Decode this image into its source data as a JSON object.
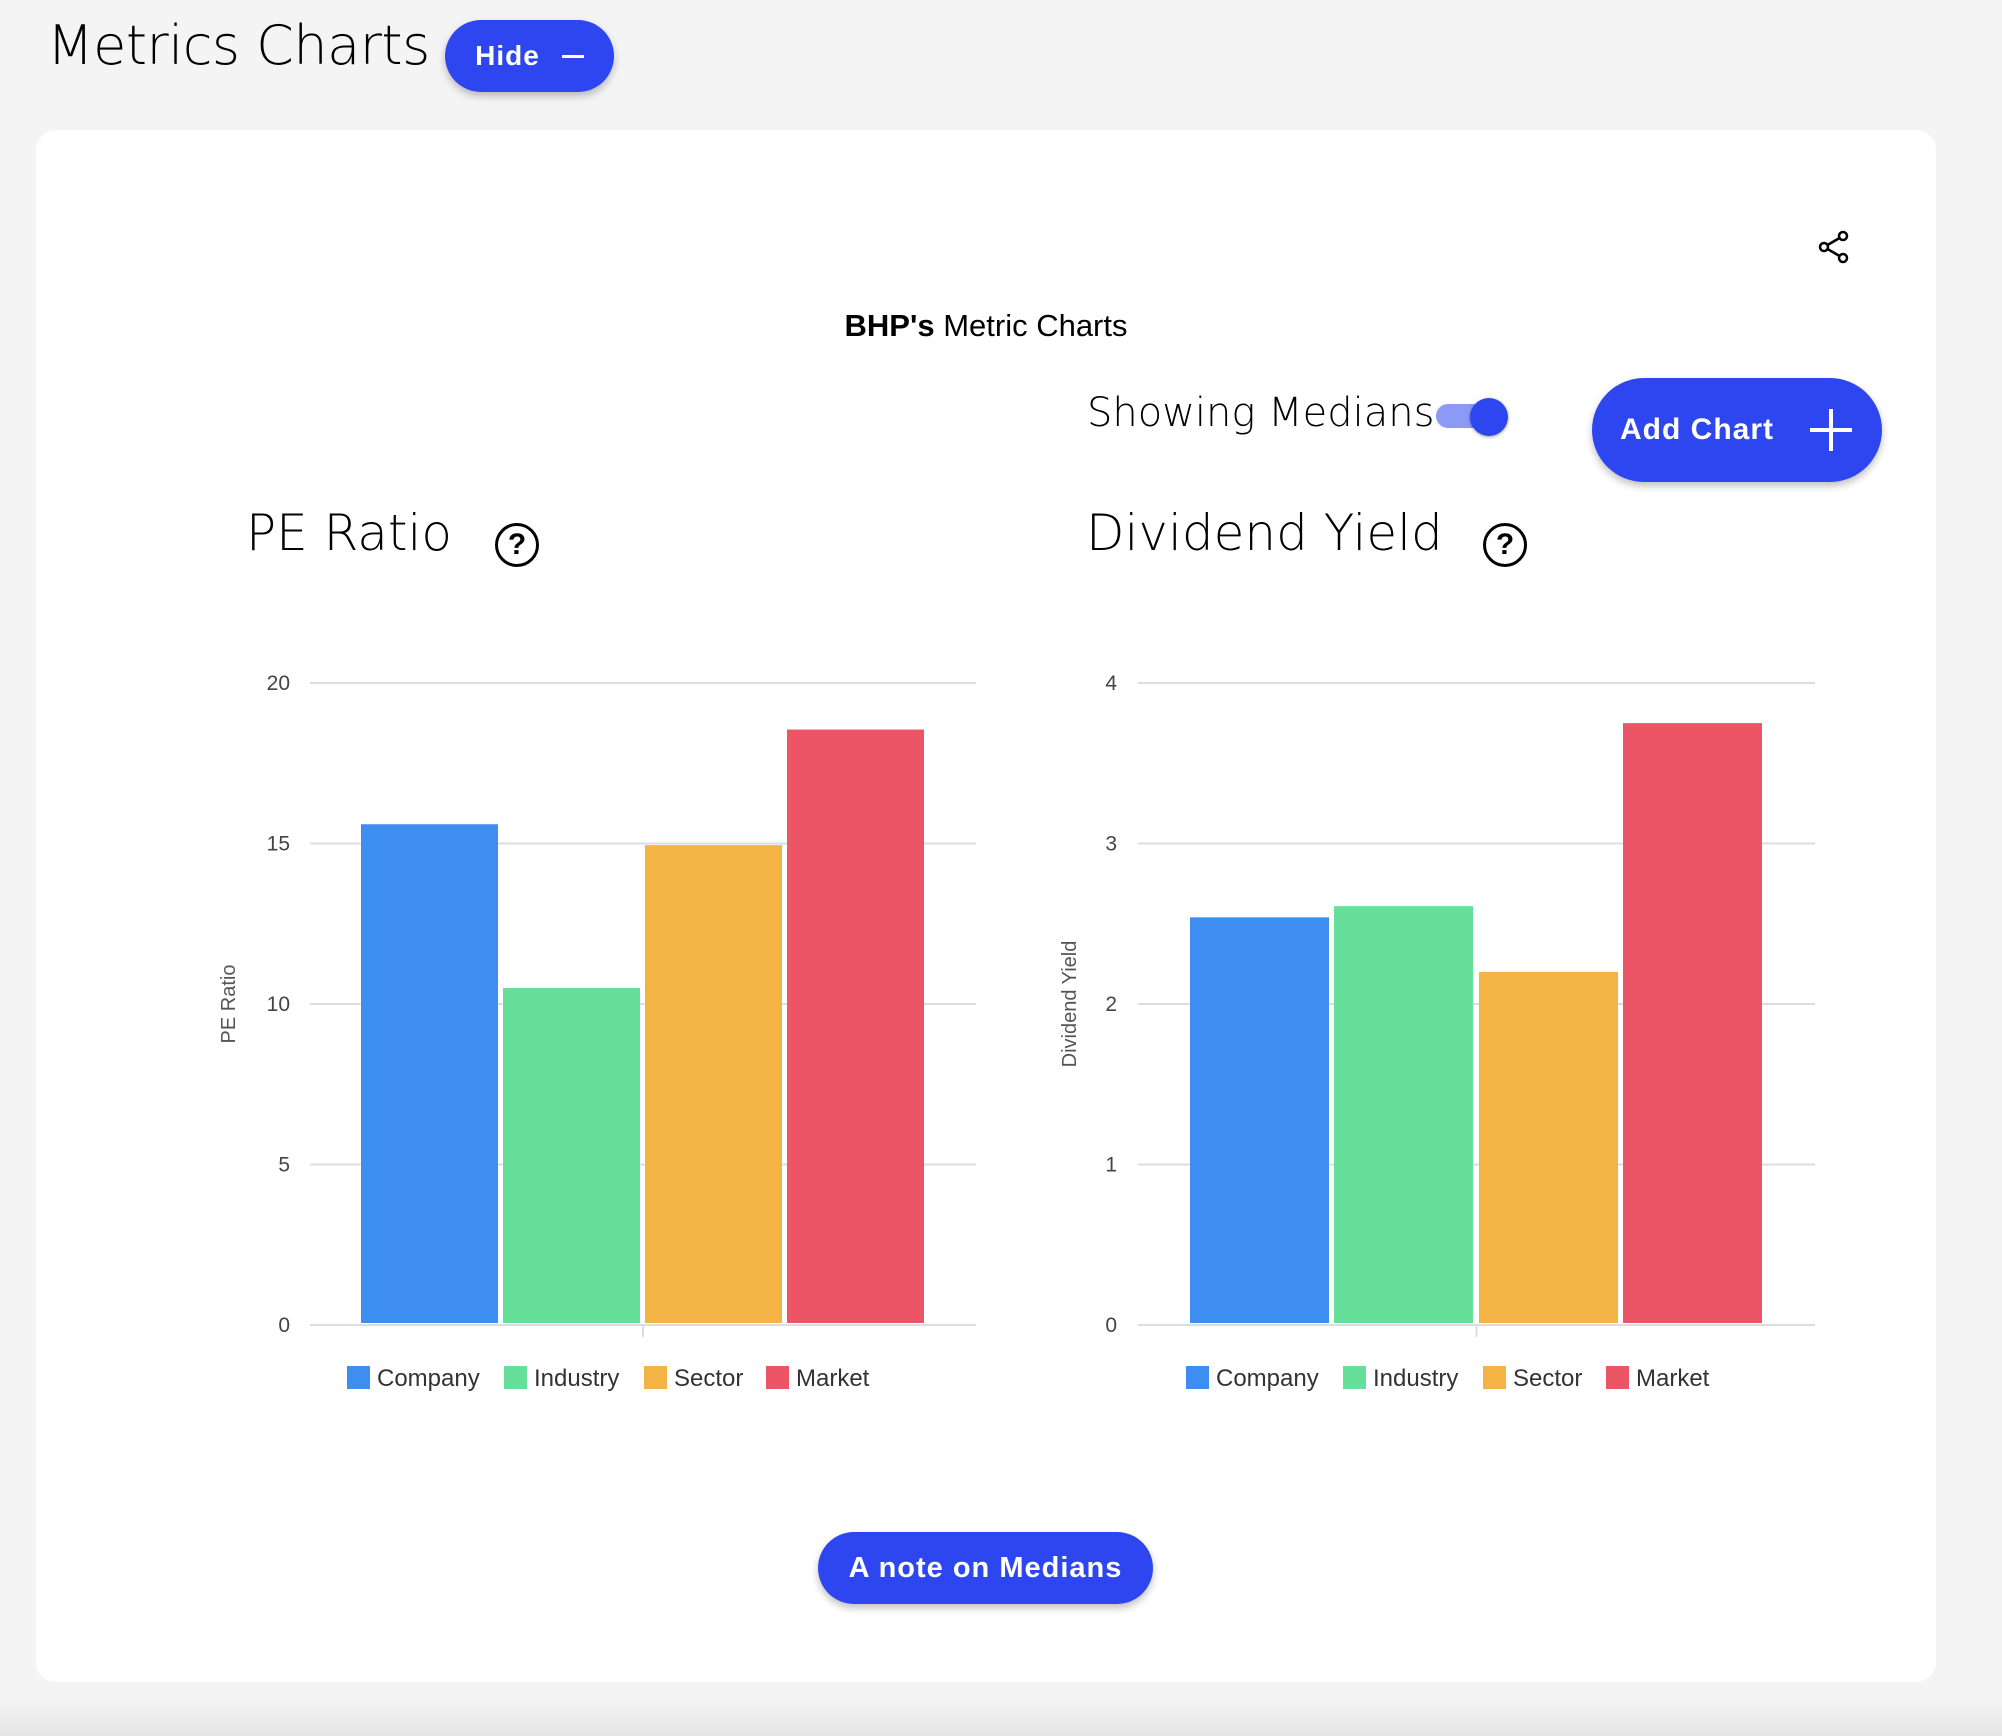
{
  "header": {
    "title": "Metrics Charts",
    "hide_label": "Hide",
    "hide_icon": "minus-icon"
  },
  "card": {
    "share_icon": "share-icon",
    "subtitle_bold": "BHP's",
    "subtitle_rest": " Metric Charts",
    "medians_label": "Showing Medians",
    "medians_toggle_on": true,
    "add_chart_label": "Add Chart",
    "add_icon": "plus-icon",
    "note_label": "A note on Medians",
    "help_icon": "question-circle-icon"
  },
  "colors": {
    "accent": "#2d46f0",
    "Company": "#3d8ef0",
    "Industry": "#66df9a",
    "Sector": "#f4b345",
    "Market": "#ec5565"
  },
  "chart_data": [
    {
      "type": "bar",
      "title": "PE Ratio",
      "ylabel": "PE Ratio",
      "ylim": [
        0,
        20
      ],
      "yticks": [
        "0",
        "5",
        "10",
        "15",
        "20"
      ],
      "grid": true,
      "legend": "bottom",
      "series": [
        {
          "name": "Company",
          "value": 15.6
        },
        {
          "name": "Industry",
          "value": 10.5
        },
        {
          "name": "Sector",
          "value": 14.95
        },
        {
          "name": "Market",
          "value": 18.55
        }
      ]
    },
    {
      "type": "bar",
      "title": "Dividend Yield",
      "ylabel": "Dividend Yield",
      "ylim": [
        0,
        4
      ],
      "yticks": [
        "0",
        "1",
        "2",
        "3",
        "4"
      ],
      "grid": true,
      "legend": "bottom",
      "series": [
        {
          "name": "Company",
          "value": 2.54
        },
        {
          "name": "Industry",
          "value": 2.61
        },
        {
          "name": "Sector",
          "value": 2.2
        },
        {
          "name": "Market",
          "value": 3.75
        }
      ]
    }
  ]
}
